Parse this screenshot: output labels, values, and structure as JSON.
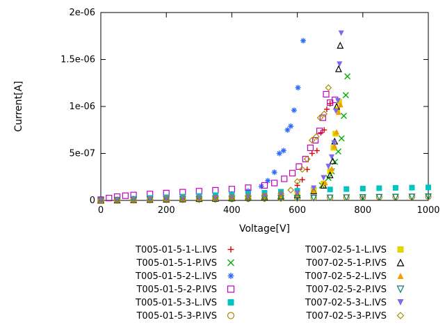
{
  "chart_data": {
    "type": "scatter",
    "title": "",
    "xlabel": "Voltage[V]",
    "ylabel": "Current[A]",
    "xlim": [
      0,
      1000
    ],
    "ylim": [
      0,
      2e-06
    ],
    "grid": false,
    "legend_position": "below-two-columns",
    "xticks": {
      "values": [
        0,
        200,
        400,
        600,
        800,
        1000
      ],
      "labels": [
        "0",
        "200",
        "400",
        "600",
        "800",
        "1000"
      ]
    },
    "yticks": {
      "values": [
        0,
        5e-07,
        1e-06,
        1.5e-06,
        2e-06
      ],
      "labels": [
        "0",
        "5e-07",
        "1e-06",
        "1.5e-06",
        "2e-06"
      ]
    },
    "series": [
      {
        "name": "T005-01-5-1-L.IVS",
        "color": "#e00000",
        "marker": "plus",
        "points": [
          [
            0,
            2e-09
          ],
          [
            50,
            8e-09
          ],
          [
            100,
            1.2e-08
          ],
          [
            150,
            1.6e-08
          ],
          [
            200,
            2e-08
          ],
          [
            250,
            2.4e-08
          ],
          [
            300,
            2.8e-08
          ],
          [
            350,
            3.2e-08
          ],
          [
            400,
            3.8e-08
          ],
          [
            450,
            4.6e-08
          ],
          [
            500,
            5.6e-08
          ],
          [
            550,
            8e-08
          ],
          [
            600,
            1.6e-07
          ],
          [
            615,
            2.2e-07
          ],
          [
            630,
            3.3e-07
          ],
          [
            645,
            5e-07
          ],
          [
            660,
            5.3e-07
          ],
          [
            672,
            7.2e-07
          ],
          [
            682,
            7.5e-07
          ],
          [
            690,
            9.7e-07
          ],
          [
            700,
            1.03e-06
          ]
        ]
      },
      {
        "name": "T005-01-5-1-P.IVS",
        "color": "#00b000",
        "marker": "cross",
        "points": [
          [
            0,
            1e-09
          ],
          [
            50,
            4e-09
          ],
          [
            100,
            7e-09
          ],
          [
            150,
            1e-08
          ],
          [
            200,
            1.3e-08
          ],
          [
            250,
            1.6e-08
          ],
          [
            300,
            1.9e-08
          ],
          [
            350,
            2.2e-08
          ],
          [
            400,
            2.6e-08
          ],
          [
            450,
            3e-08
          ],
          [
            500,
            3.6e-08
          ],
          [
            550,
            4.5e-08
          ],
          [
            600,
            6.5e-08
          ],
          [
            650,
            1.1e-07
          ],
          [
            675,
            1.6e-07
          ],
          [
            695,
            2.4e-07
          ],
          [
            705,
            3.1e-07
          ],
          [
            715,
            4.1e-07
          ],
          [
            725,
            5.2e-07
          ],
          [
            735,
            6.6e-07
          ],
          [
            742,
            9e-07
          ],
          [
            748,
            1.12e-06
          ],
          [
            753,
            1.32e-06
          ]
        ]
      },
      {
        "name": "T005-01-5-2-L.IVS",
        "color": "#2e6bff",
        "marker": "asterisk",
        "points": [
          [
            0,
            3e-09
          ],
          [
            50,
            1e-08
          ],
          [
            100,
            1.8e-08
          ],
          [
            150,
            2.4e-08
          ],
          [
            200,
            3e-08
          ],
          [
            250,
            3.6e-08
          ],
          [
            300,
            4.4e-08
          ],
          [
            350,
            5.4e-08
          ],
          [
            400,
            7e-08
          ],
          [
            450,
            1e-07
          ],
          [
            490,
            1.5e-07
          ],
          [
            510,
            2.1e-07
          ],
          [
            530,
            3e-07
          ],
          [
            545,
            5e-07
          ],
          [
            558,
            5.3e-07
          ],
          [
            570,
            7.5e-07
          ],
          [
            580,
            7.9e-07
          ],
          [
            590,
            9.6e-07
          ],
          [
            602,
            1.2e-06
          ],
          [
            618,
            1.7e-06
          ]
        ]
      },
      {
        "name": "T005-01-5-2-P.IVS",
        "color": "#c000c0",
        "marker": "square-open",
        "points": [
          [
            0,
            8e-09
          ],
          [
            25,
            2.5e-08
          ],
          [
            50,
            4e-08
          ],
          [
            75,
            5e-08
          ],
          [
            100,
            5.8e-08
          ],
          [
            150,
            6.8e-08
          ],
          [
            200,
            7.8e-08
          ],
          [
            250,
            8.8e-08
          ],
          [
            300,
            9.8e-08
          ],
          [
            350,
            1.08e-07
          ],
          [
            400,
            1.2e-07
          ],
          [
            450,
            1.35e-07
          ],
          [
            500,
            1.6e-07
          ],
          [
            530,
            1.85e-07
          ],
          [
            560,
            2.3e-07
          ],
          [
            585,
            2.9e-07
          ],
          [
            605,
            3.6e-07
          ],
          [
            625,
            4.4e-07
          ],
          [
            640,
            5.6e-07
          ],
          [
            655,
            6.4e-07
          ],
          [
            668,
            7.4e-07
          ],
          [
            678,
            8.8e-07
          ],
          [
            688,
            1.13e-06
          ],
          [
            700,
            1.04e-06
          ],
          [
            715,
            1.07e-06
          ]
        ]
      },
      {
        "name": "T005-01-5-3-L.IVS",
        "color": "#00c4c4",
        "marker": "square-filled",
        "points": [
          [
            0,
            2e-09
          ],
          [
            50,
            9e-09
          ],
          [
            100,
            1.8e-08
          ],
          [
            150,
            2.6e-08
          ],
          [
            200,
            3.3e-08
          ],
          [
            250,
            4e-08
          ],
          [
            300,
            4.7e-08
          ],
          [
            350,
            5.5e-08
          ],
          [
            400,
            6.3e-08
          ],
          [
            450,
            7.2e-08
          ],
          [
            500,
            8.2e-08
          ],
          [
            550,
            9.2e-08
          ],
          [
            600,
            1.02e-07
          ],
          [
            650,
            1.1e-07
          ],
          [
            700,
            1.16e-07
          ],
          [
            750,
            1.21e-07
          ],
          [
            800,
            1.26e-07
          ],
          [
            850,
            1.3e-07
          ],
          [
            900,
            1.33e-07
          ],
          [
            950,
            1.36e-07
          ],
          [
            1000,
            1.38e-07
          ]
        ]
      },
      {
        "name": "T005-01-5-3-P.IVS",
        "color": "#b08000",
        "marker": "circle-open",
        "points": [
          [
            0,
            1e-09
          ],
          [
            50,
            3e-09
          ],
          [
            100,
            5e-09
          ],
          [
            150,
            7e-09
          ],
          [
            200,
            9e-09
          ],
          [
            250,
            1.1e-08
          ],
          [
            300,
            1.3e-08
          ],
          [
            350,
            1.5e-08
          ],
          [
            400,
            1.7e-08
          ],
          [
            450,
            1.9e-08
          ],
          [
            500,
            2.1e-08
          ],
          [
            550,
            2.3e-08
          ],
          [
            600,
            2.5e-08
          ],
          [
            650,
            2.7e-08
          ],
          [
            700,
            2.9e-08
          ],
          [
            750,
            3.1e-08
          ],
          [
            800,
            3.3e-08
          ],
          [
            850,
            3.5e-08
          ],
          [
            900,
            3.7e-08
          ],
          [
            950,
            3.9e-08
          ],
          [
            1000,
            4.1e-08
          ]
        ]
      },
      {
        "name": "T007-02-5-1-L.IVS",
        "color": "#e3d400",
        "marker": "square-filled",
        "points": [
          [
            0,
            1e-09
          ],
          [
            50,
            4e-09
          ],
          [
            100,
            8e-09
          ],
          [
            150,
            1.1e-08
          ],
          [
            200,
            1.4e-08
          ],
          [
            250,
            1.7e-08
          ],
          [
            300,
            2e-08
          ],
          [
            350,
            2.4e-08
          ],
          [
            400,
            2.8e-08
          ],
          [
            450,
            3.3e-08
          ],
          [
            500,
            4e-08
          ],
          [
            550,
            5e-08
          ],
          [
            600,
            7e-08
          ],
          [
            650,
            1.1e-07
          ],
          [
            680,
            1.8e-07
          ],
          [
            700,
            3.1e-07
          ],
          [
            710,
            5.6e-07
          ],
          [
            716,
            7.1e-07
          ],
          [
            722,
            9.7e-07
          ],
          [
            728,
            1.05e-06
          ]
        ]
      },
      {
        "name": "T007-02-5-1-P.IVS",
        "color": "#000000",
        "marker": "triangle-up-open",
        "points": [
          [
            0,
            1e-09
          ],
          [
            50,
            3e-09
          ],
          [
            100,
            6e-09
          ],
          [
            150,
            9e-09
          ],
          [
            200,
            1.2e-08
          ],
          [
            250,
            1.5e-08
          ],
          [
            300,
            1.8e-08
          ],
          [
            350,
            2.1e-08
          ],
          [
            400,
            2.5e-08
          ],
          [
            450,
            3e-08
          ],
          [
            500,
            3.6e-08
          ],
          [
            550,
            4.5e-08
          ],
          [
            600,
            6e-08
          ],
          [
            650,
            1e-07
          ],
          [
            680,
            1.6e-07
          ],
          [
            700,
            2.7e-07
          ],
          [
            708,
            4.2e-07
          ],
          [
            714,
            6.3e-07
          ],
          [
            720,
            1e-06
          ],
          [
            726,
            1.4e-06
          ],
          [
            731,
            1.65e-06
          ]
        ]
      },
      {
        "name": "T007-02-5-2-L.IVS",
        "color": "#f0a000",
        "marker": "triangle-up-filled",
        "points": [
          [
            0,
            2e-09
          ],
          [
            50,
            5e-09
          ],
          [
            100,
            8e-09
          ],
          [
            150,
            1.1e-08
          ],
          [
            200,
            1.4e-08
          ],
          [
            250,
            1.7e-08
          ],
          [
            300,
            2e-08
          ],
          [
            350,
            2.3e-08
          ],
          [
            400,
            2.7e-08
          ],
          [
            450,
            3.2e-08
          ],
          [
            500,
            3.8e-08
          ],
          [
            550,
            4.7e-08
          ],
          [
            600,
            6.2e-08
          ],
          [
            650,
            1.05e-07
          ],
          [
            685,
            1.9e-07
          ],
          [
            705,
            3.4e-07
          ],
          [
            714,
            5.8e-07
          ],
          [
            720,
            7.3e-07
          ],
          [
            726,
            9.4e-07
          ],
          [
            732,
            1.02e-06
          ]
        ]
      },
      {
        "name": "T007-02-5-2-P.IVS",
        "color": "#00806a",
        "marker": "triangle-down-open",
        "points": [
          [
            0,
            1e-09
          ],
          [
            50,
            2e-09
          ],
          [
            100,
            4e-09
          ],
          [
            150,
            6e-09
          ],
          [
            200,
            8e-09
          ],
          [
            250,
            1e-08
          ],
          [
            300,
            1.2e-08
          ],
          [
            350,
            1.4e-08
          ],
          [
            400,
            1.6e-08
          ],
          [
            450,
            1.8e-08
          ],
          [
            500,
            2e-08
          ],
          [
            550,
            2.2e-08
          ],
          [
            600,
            2.4e-08
          ],
          [
            650,
            2.6e-08
          ],
          [
            700,
            2.8e-08
          ],
          [
            750,
            3e-08
          ],
          [
            800,
            3.2e-08
          ],
          [
            850,
            3.4e-08
          ],
          [
            900,
            3.6e-08
          ],
          [
            950,
            3.8e-08
          ],
          [
            1000,
            4e-08
          ]
        ]
      },
      {
        "name": "T007-02-5-3-L.IVS",
        "color": "#7b68ee",
        "marker": "triangle-down-filled",
        "points": [
          [
            0,
            2e-09
          ],
          [
            50,
            6e-09
          ],
          [
            100,
            1e-08
          ],
          [
            150,
            1.4e-08
          ],
          [
            200,
            1.8e-08
          ],
          [
            250,
            2.2e-08
          ],
          [
            300,
            2.6e-08
          ],
          [
            350,
            3e-08
          ],
          [
            400,
            3.5e-08
          ],
          [
            450,
            4.1e-08
          ],
          [
            500,
            4.9e-08
          ],
          [
            550,
            6e-08
          ],
          [
            600,
            8e-08
          ],
          [
            650,
            1.3e-07
          ],
          [
            680,
            2.4e-07
          ],
          [
            695,
            3.6e-07
          ],
          [
            705,
            4.6e-07
          ],
          [
            712,
            6.1e-07
          ],
          [
            718,
            9.5e-07
          ],
          [
            724,
            1.06e-06
          ],
          [
            729,
            1.45e-06
          ],
          [
            734,
            1.78e-06
          ]
        ]
      },
      {
        "name": "T007-02-5-3-P.IVS",
        "color": "#a09000",
        "marker": "diamond-open",
        "points": [
          [
            0,
            1e-09
          ],
          [
            50,
            4e-09
          ],
          [
            100,
            8e-09
          ],
          [
            150,
            1.2e-08
          ],
          [
            200,
            1.6e-08
          ],
          [
            250,
            2e-08
          ],
          [
            300,
            2.4e-08
          ],
          [
            350,
            2.9e-08
          ],
          [
            400,
            3.5e-08
          ],
          [
            450,
            4.3e-08
          ],
          [
            500,
            5.4e-08
          ],
          [
            550,
            7.2e-08
          ],
          [
            580,
            1.1e-07
          ],
          [
            600,
            2e-07
          ],
          [
            615,
            3.3e-07
          ],
          [
            630,
            4.4e-07
          ],
          [
            645,
            6.4e-07
          ],
          [
            658,
            6.8e-07
          ],
          [
            670,
            8.8e-07
          ],
          [
            682,
            9.2e-07
          ],
          [
            695,
            1.2e-06
          ]
        ]
      }
    ]
  }
}
